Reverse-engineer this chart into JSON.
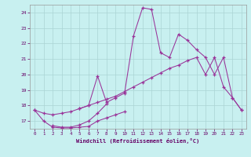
{
  "xlabel": "Windchill (Refroidissement éolien,°C)",
  "bg_color": "#c8f0f0",
  "grid_color": "#aad4d4",
  "line_color": "#993399",
  "x_min": 0,
  "x_max": 23,
  "y_min": 16.5,
  "y_max": 24.5,
  "yticks": [
    17,
    18,
    19,
    20,
    21,
    22,
    23,
    24
  ],
  "xticks": [
    0,
    1,
    2,
    3,
    4,
    5,
    6,
    7,
    8,
    9,
    10,
    11,
    12,
    13,
    14,
    15,
    16,
    17,
    18,
    19,
    20,
    21,
    22,
    23
  ],
  "line1_x": [
    0,
    1,
    2,
    3,
    4,
    5,
    6,
    7,
    8,
    9,
    10
  ],
  "line1_y": [
    17.7,
    17.0,
    16.6,
    16.55,
    16.55,
    16.6,
    16.65,
    17.0,
    17.2,
    17.4,
    17.6
  ],
  "line2_x": [
    2,
    3,
    4,
    5,
    6,
    7,
    8
  ],
  "line2_y": [
    16.7,
    16.6,
    16.6,
    16.75,
    17.0,
    17.5,
    18.1
  ],
  "line3_x": [
    0,
    1,
    2,
    3,
    4,
    5,
    6,
    7,
    8,
    9,
    10,
    11,
    12,
    13,
    14,
    15,
    16,
    17,
    18,
    19,
    20,
    21,
    22,
    23
  ],
  "line3_y": [
    17.7,
    17.5,
    17.4,
    17.5,
    17.6,
    17.8,
    18.0,
    18.2,
    18.4,
    18.6,
    18.9,
    19.2,
    19.5,
    19.8,
    20.1,
    20.4,
    20.6,
    20.9,
    21.1,
    20.0,
    21.1,
    19.2,
    18.5,
    17.7
  ],
  "line4_x": [
    5,
    6,
    7,
    8,
    9,
    10,
    11,
    12,
    13,
    14,
    15,
    16,
    17,
    18,
    19,
    20,
    21,
    22,
    23
  ],
  "line4_y": [
    17.8,
    18.0,
    19.9,
    18.2,
    18.5,
    18.8,
    22.5,
    24.3,
    24.2,
    21.4,
    21.1,
    22.6,
    22.2,
    21.6,
    21.1,
    20.0,
    21.1,
    18.5,
    17.7
  ]
}
